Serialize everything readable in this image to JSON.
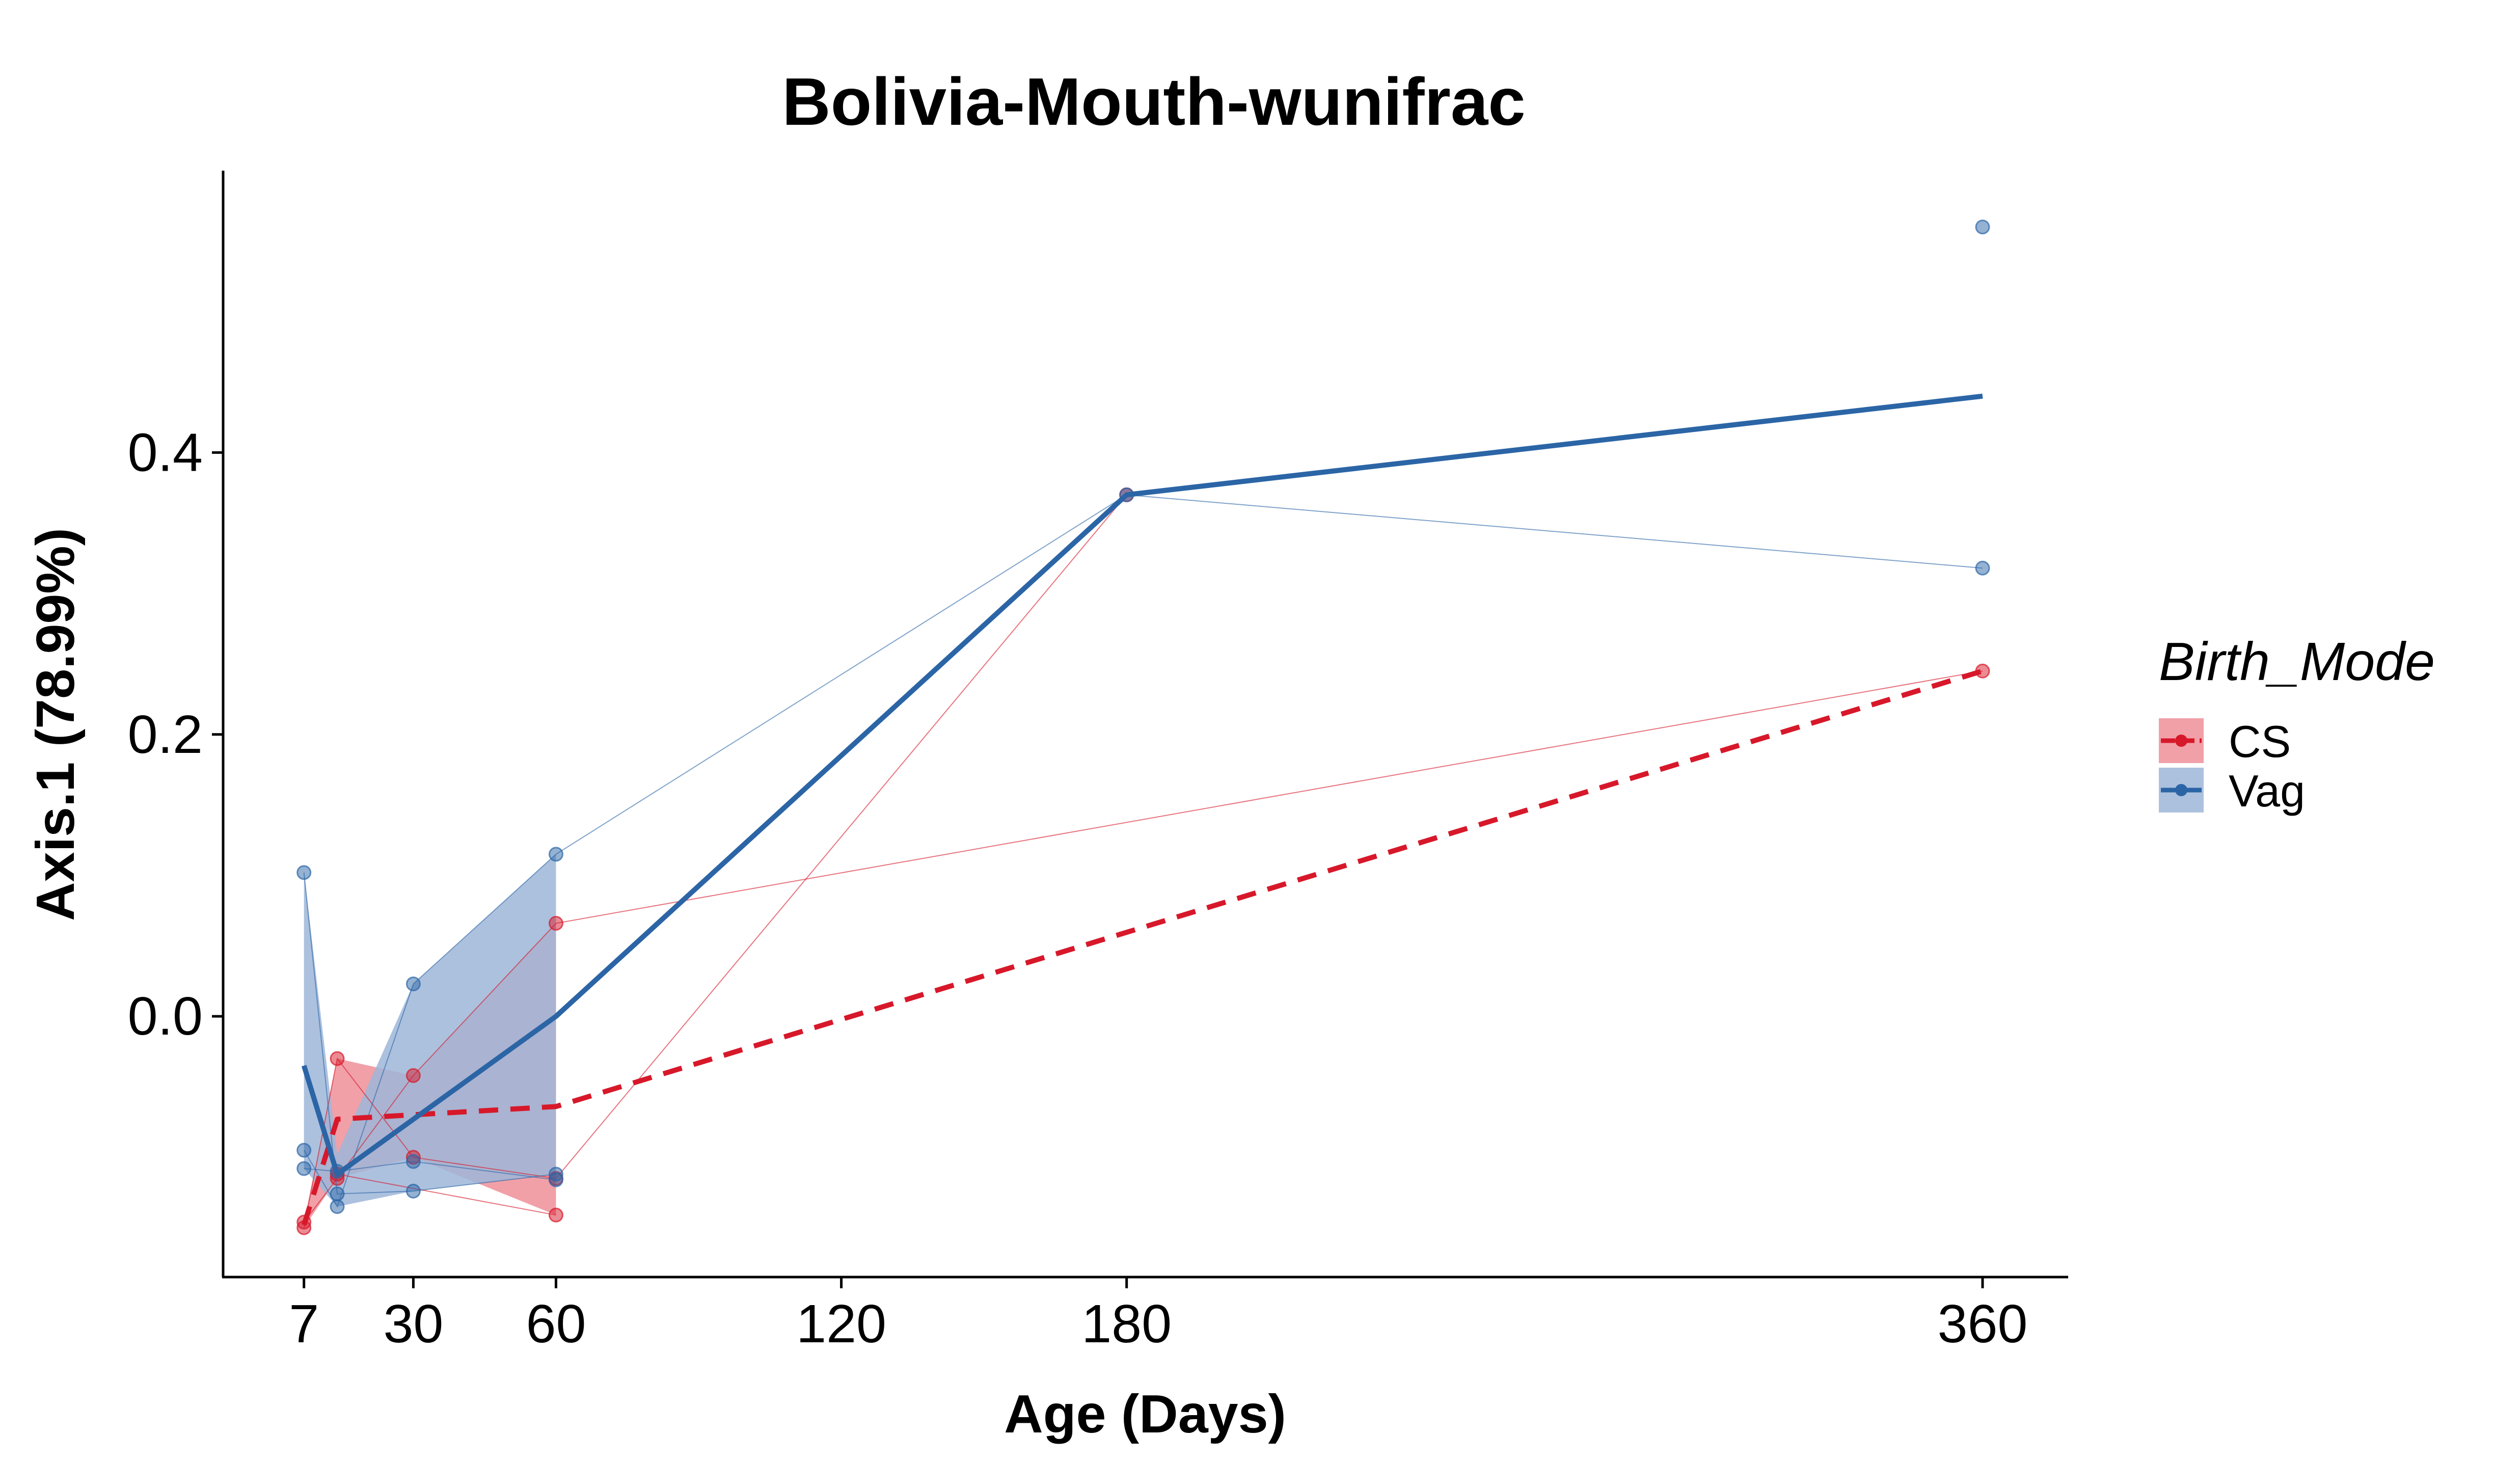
{
  "chart_data": {
    "type": "line",
    "title": "Bolivia-Mouth-wunifrac",
    "xlabel": "Age (Days)",
    "ylabel": "Axis.1 (78.99%)",
    "x_ticks": [
      7,
      30,
      60,
      120,
      180,
      360
    ],
    "y_ticks": [
      0.0,
      0.2,
      0.4
    ],
    "y_tick_labels": [
      "0.0",
      "0.2",
      "0.4"
    ],
    "xlim": [
      -10,
      378
    ],
    "ylim": [
      -0.185,
      0.6
    ],
    "legend": {
      "title": "Birth_Mode",
      "position": "right",
      "entries": [
        "CS",
        "Vag"
      ]
    },
    "series": [
      {
        "name": "CS",
        "color": "#d7182a",
        "fill": "#ef8f99",
        "mean_line_style": "dashed",
        "mean": [
          {
            "x": 7,
            "y": -0.148
          },
          {
            "x": 14,
            "y": -0.073
          },
          {
            "x": 60,
            "y": -0.064
          },
          {
            "x": 360,
            "y": 0.245
          }
        ],
        "ribbon": [
          {
            "x": 7,
            "ymin": -0.15,
            "ymax": -0.146
          },
          {
            "x": 14,
            "ymin": -0.115,
            "ymax": -0.03
          },
          {
            "x": 30,
            "ymin": -0.1,
            "ymax": -0.042
          },
          {
            "x": 60,
            "ymin": -0.141,
            "ymax": 0.066
          }
        ],
        "subjects": [
          [
            {
              "x": 7,
              "y": -0.15
            },
            {
              "x": 14,
              "y": -0.03
            },
            {
              "x": 30,
              "y": -0.1
            },
            {
              "x": 60,
              "y": -0.115
            },
            {
              "x": 180,
              "y": 0.37
            }
          ],
          [
            {
              "x": 7,
              "y": -0.146
            },
            {
              "x": 14,
              "y": -0.115
            },
            {
              "x": 30,
              "y": -0.042
            },
            {
              "x": 60,
              "y": 0.066
            },
            {
              "x": 360,
              "y": 0.245
            }
          ],
          [
            {
              "x": 14,
              "y": -0.112
            },
            {
              "x": 60,
              "y": -0.141
            }
          ]
        ]
      },
      {
        "name": "Vag",
        "color": "#2b65a6",
        "fill": "#9db6d8",
        "mean_line_style": "solid",
        "mean": [
          {
            "x": 7,
            "y": -0.035
          },
          {
            "x": 14,
            "y": -0.112
          },
          {
            "x": 60,
            "y": 0.0
          },
          {
            "x": 180,
            "y": 0.37
          },
          {
            "x": 360,
            "y": 0.44
          }
        ],
        "ribbon": [
          {
            "x": 7,
            "ymin": -0.108,
            "ymax": 0.102
          },
          {
            "x": 14,
            "ymin": -0.135,
            "ymax": -0.098
          },
          {
            "x": 30,
            "ymin": -0.124,
            "ymax": 0.023
          },
          {
            "x": 60,
            "ymin": -0.112,
            "ymax": 0.115
          }
        ],
        "subjects": [
          [
            {
              "x": 7,
              "y": 0.102
            },
            {
              "x": 14,
              "y": -0.126
            },
            {
              "x": 30,
              "y": -0.124
            },
            {
              "x": 60,
              "y": -0.112
            }
          ],
          [
            {
              "x": 7,
              "y": -0.095
            },
            {
              "x": 14,
              "y": -0.135
            },
            {
              "x": 30,
              "y": 0.023
            },
            {
              "x": 60,
              "y": 0.115
            },
            {
              "x": 180,
              "y": 0.37
            },
            {
              "x": 360,
              "y": 0.318
            }
          ],
          [
            {
              "x": 7,
              "y": -0.108
            },
            {
              "x": 14,
              "y": -0.11
            },
            {
              "x": 30,
              "y": -0.103
            },
            {
              "x": 60,
              "y": -0.116
            }
          ],
          [
            {
              "x": 360,
              "y": 0.56
            }
          ]
        ]
      }
    ]
  }
}
